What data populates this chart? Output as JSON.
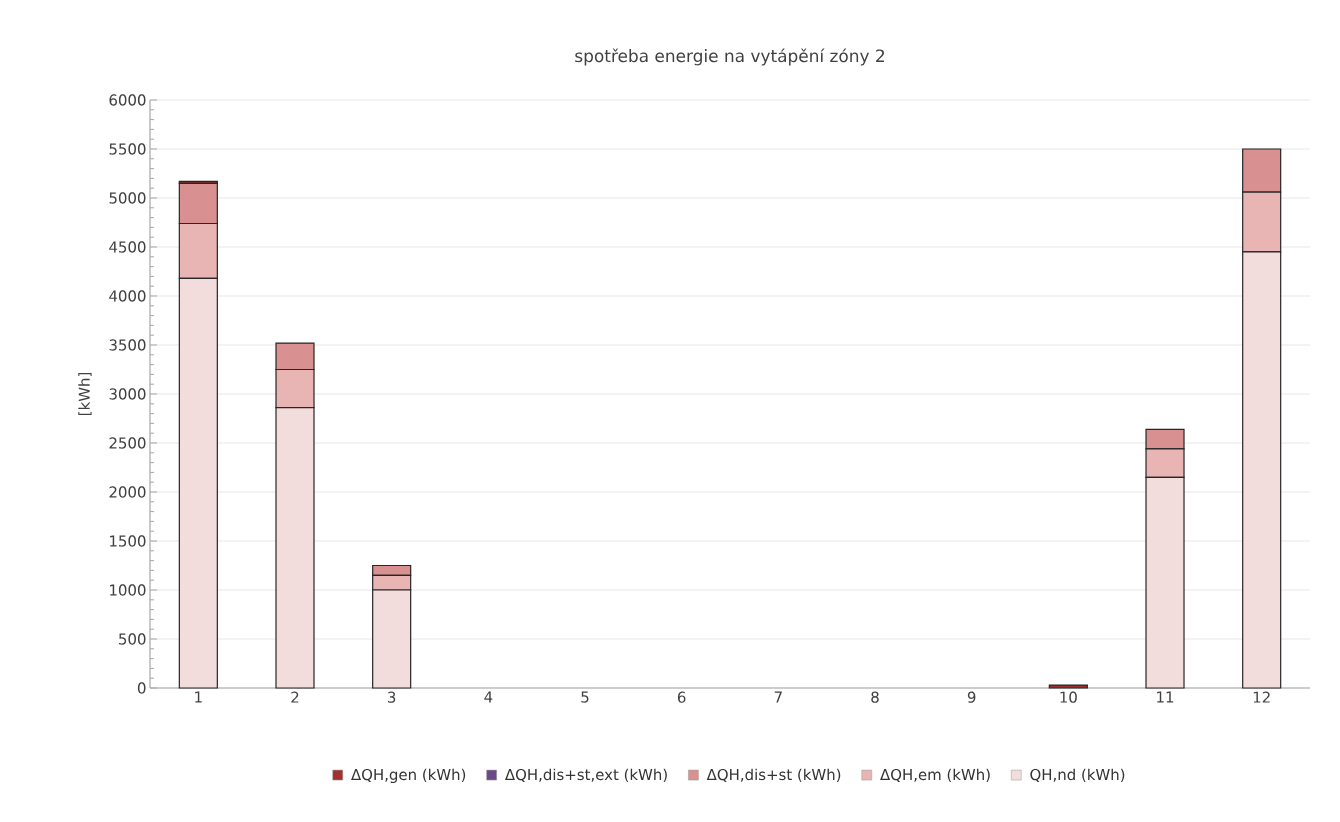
{
  "chart_data": {
    "type": "bar",
    "stacked": true,
    "title": "spotřeba energie na vytápění zóny 2",
    "ylabel": "[kWh]",
    "categories": [
      "1",
      "2",
      "3",
      "4",
      "5",
      "6",
      "7",
      "8",
      "9",
      "10",
      "11",
      "12"
    ],
    "series": [
      {
        "name": "QH,nd (kWh)",
        "color": "#f2dcdc",
        "values": [
          4180,
          2860,
          1000,
          0,
          0,
          0,
          0,
          0,
          0,
          0,
          2150,
          4450
        ]
      },
      {
        "name": "ΔQH,em (kWh)",
        "color": "#e8b4b4",
        "values": [
          560,
          390,
          150,
          0,
          0,
          0,
          0,
          0,
          0,
          0,
          290,
          610
        ]
      },
      {
        "name": "ΔQH,dis+st (kWh)",
        "color": "#d99090",
        "values": [
          410,
          270,
          100,
          0,
          0,
          0,
          0,
          0,
          0,
          0,
          200,
          440
        ]
      },
      {
        "name": "ΔQH,dis+st,ext (kWh)",
        "color": "#6a4a8a",
        "values": [
          0,
          0,
          0,
          0,
          0,
          0,
          0,
          0,
          0,
          0,
          0,
          0
        ]
      },
      {
        "name": "ΔQH,gen (kWh)",
        "color": "#a03030",
        "values": [
          20,
          0,
          0,
          0,
          0,
          0,
          0,
          0,
          0,
          30,
          0,
          0
        ]
      }
    ],
    "ylim": [
      0,
      6000
    ],
    "yticks": [
      0,
      500,
      1000,
      1500,
      2000,
      2500,
      3000,
      3500,
      4000,
      4500,
      5000,
      5500,
      6000
    ],
    "grid": "y",
    "legend": "bottom"
  }
}
